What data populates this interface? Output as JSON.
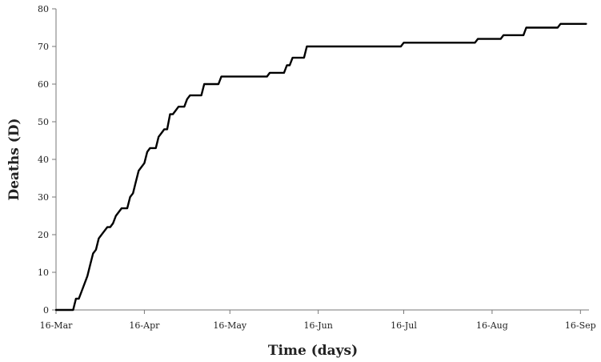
{
  "chart_data": {
    "type": "line",
    "title": "",
    "xlabel": "Time (days)",
    "ylabel": "Deaths (D)",
    "ylim": [
      0,
      80
    ],
    "yticks": [
      0,
      10,
      20,
      30,
      40,
      50,
      60,
      70,
      80
    ],
    "xlim": [
      "2020-03-16",
      "2020-09-19"
    ],
    "xticks": [
      {
        "date": "2020-03-16",
        "label": "16-Mar"
      },
      {
        "date": "2020-04-16",
        "label": "16-Apr"
      },
      {
        "date": "2020-05-16",
        "label": "16-May"
      },
      {
        "date": "2020-06-16",
        "label": "16-Jun"
      },
      {
        "date": "2020-07-16",
        "label": "16-Jul"
      },
      {
        "date": "2020-08-16",
        "label": "16-Aug"
      },
      {
        "date": "2020-09-16",
        "label": "16-Sep"
      }
    ],
    "grid": false,
    "line_color": "#000000",
    "series": [
      {
        "name": "",
        "points": [
          [
            "2020-03-16",
            0
          ],
          [
            "2020-03-22",
            0
          ],
          [
            "2020-03-23",
            3
          ],
          [
            "2020-03-24",
            3
          ],
          [
            "2020-03-25",
            5
          ],
          [
            "2020-03-27",
            9
          ],
          [
            "2020-03-28",
            12
          ],
          [
            "2020-03-29",
            15
          ],
          [
            "2020-03-30",
            16
          ],
          [
            "2020-03-31",
            19
          ],
          [
            "2020-04-02",
            21
          ],
          [
            "2020-04-03",
            22
          ],
          [
            "2020-04-04",
            22
          ],
          [
            "2020-04-05",
            23
          ],
          [
            "2020-04-06",
            25
          ],
          [
            "2020-04-08",
            27
          ],
          [
            "2020-04-10",
            27
          ],
          [
            "2020-04-11",
            30
          ],
          [
            "2020-04-12",
            31
          ],
          [
            "2020-04-13",
            34
          ],
          [
            "2020-04-14",
            37
          ],
          [
            "2020-04-16",
            39
          ],
          [
            "2020-04-17",
            42
          ],
          [
            "2020-04-18",
            43
          ],
          [
            "2020-04-20",
            43
          ],
          [
            "2020-04-21",
            46
          ],
          [
            "2020-04-22",
            47
          ],
          [
            "2020-04-23",
            48
          ],
          [
            "2020-04-24",
            48
          ],
          [
            "2020-04-25",
            52
          ],
          [
            "2020-04-26",
            52
          ],
          [
            "2020-04-27",
            53
          ],
          [
            "2020-04-28",
            54
          ],
          [
            "2020-04-30",
            54
          ],
          [
            "2020-05-01",
            56
          ],
          [
            "2020-05-02",
            57
          ],
          [
            "2020-05-06",
            57
          ],
          [
            "2020-05-07",
            60
          ],
          [
            "2020-05-12",
            60
          ],
          [
            "2020-05-13",
            62
          ],
          [
            "2020-05-29",
            62
          ],
          [
            "2020-05-30",
            63
          ],
          [
            "2020-06-04",
            63
          ],
          [
            "2020-06-05",
            65
          ],
          [
            "2020-06-06",
            65
          ],
          [
            "2020-06-07",
            67
          ],
          [
            "2020-06-11",
            67
          ],
          [
            "2020-06-12",
            70
          ],
          [
            "2020-07-15",
            70
          ],
          [
            "2020-07-16",
            71
          ],
          [
            "2020-08-10",
            71
          ],
          [
            "2020-08-11",
            72
          ],
          [
            "2020-08-19",
            72
          ],
          [
            "2020-08-20",
            73
          ],
          [
            "2020-08-27",
            73
          ],
          [
            "2020-08-28",
            75
          ],
          [
            "2020-09-08",
            75
          ],
          [
            "2020-09-09",
            76
          ],
          [
            "2020-09-18",
            76
          ]
        ]
      }
    ]
  }
}
